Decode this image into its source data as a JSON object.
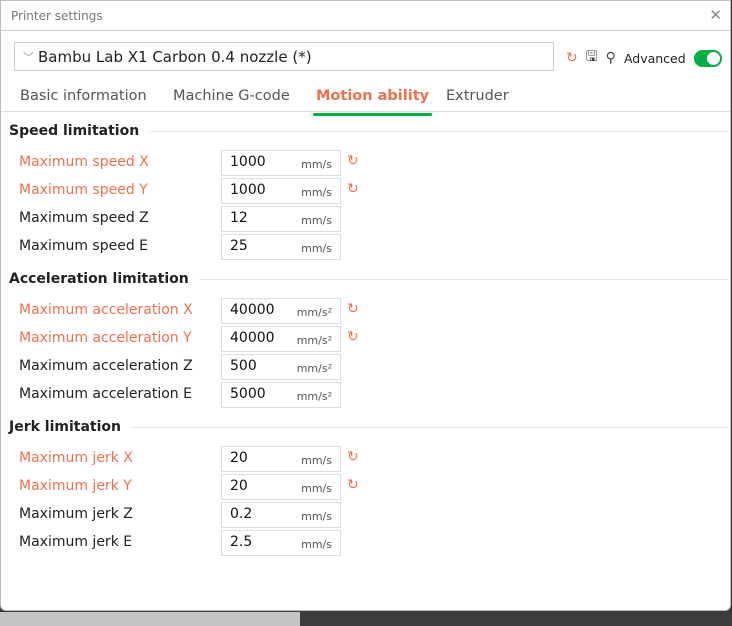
{
  "window": {
    "title": "Printer settings",
    "close_icon": "close-icon"
  },
  "preset": {
    "value": "Bambu Lab X1 Carbon 0.4 nozzle (*)"
  },
  "toolbar": {
    "advanced_label": "Advanced",
    "advanced_on": true
  },
  "tabs": [
    {
      "label": "Basic information"
    },
    {
      "label": "Machine G-code"
    },
    {
      "label": "Motion ability",
      "active": true
    },
    {
      "label": "Extruder"
    }
  ],
  "colors": {
    "accent": "#f0704d",
    "toggle": "#00ae42"
  },
  "sections": [
    {
      "title": "Speed limitation",
      "rows": [
        {
          "label": "Maximum speed X",
          "value": "1000",
          "unit": "mm/s",
          "modified": true
        },
        {
          "label": "Maximum speed Y",
          "value": "1000",
          "unit": "mm/s",
          "modified": true
        },
        {
          "label": "Maximum speed Z",
          "value": "12",
          "unit": "mm/s",
          "modified": false
        },
        {
          "label": "Maximum speed E",
          "value": "25",
          "unit": "mm/s",
          "modified": false
        }
      ]
    },
    {
      "title": "Acceleration limitation",
      "rows": [
        {
          "label": "Maximum acceleration X",
          "value": "40000",
          "unit": "mm/s²",
          "modified": true
        },
        {
          "label": "Maximum acceleration Y",
          "value": "40000",
          "unit": "mm/s²",
          "modified": true
        },
        {
          "label": "Maximum acceleration Z",
          "value": "500",
          "unit": "mm/s²",
          "modified": false
        },
        {
          "label": "Maximum acceleration E",
          "value": "5000",
          "unit": "mm/s²",
          "modified": false
        }
      ]
    },
    {
      "title": "Jerk limitation",
      "rows": [
        {
          "label": "Maximum jerk X",
          "value": "20",
          "unit": "mm/s",
          "modified": true
        },
        {
          "label": "Maximum jerk Y",
          "value": "20",
          "unit": "mm/s",
          "modified": true
        },
        {
          "label": "Maximum jerk Z",
          "value": "0.2",
          "unit": "mm/s",
          "modified": false
        },
        {
          "label": "Maximum jerk E",
          "value": "2.5",
          "unit": "mm/s",
          "modified": false
        }
      ]
    }
  ]
}
